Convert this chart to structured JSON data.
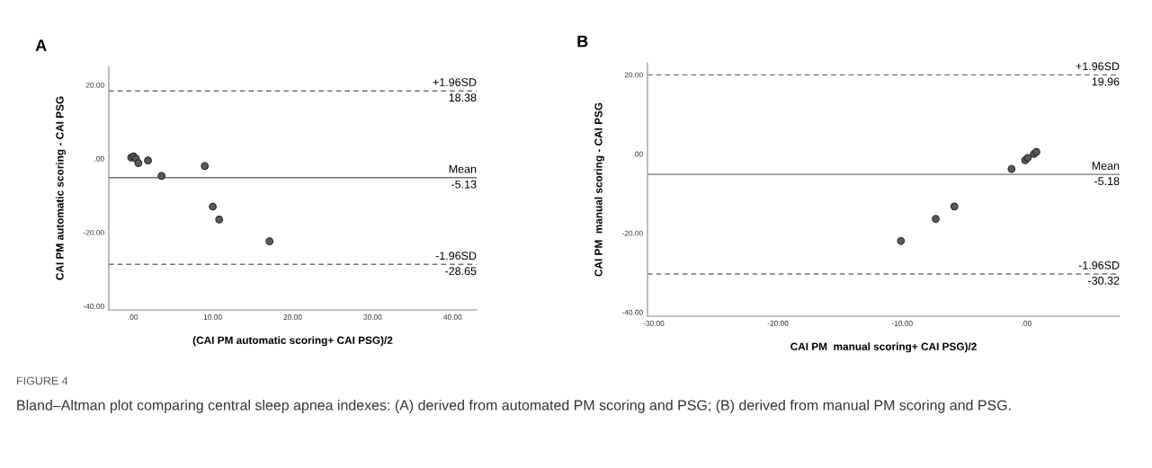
{
  "chart_data": [
    {
      "type": "scatter",
      "title": "A",
      "xlabel": "(CAI PM automatic scoring+ CAI PSG)/2",
      "ylabel": "CAI PM automatic scoring - CAI PSG",
      "x": [
        -0.2,
        0.1,
        0.4,
        0.7,
        1.9,
        3.6,
        9.0,
        10.0,
        10.8,
        17.1
      ],
      "series": [
        {
          "color": "#5a5a5a",
          "values": [
            0.3,
            0.6,
            0,
            -1.2,
            -0.5,
            -4.7,
            -2.0,
            -13.0,
            -16.5,
            -22.4
          ]
        }
      ],
      "marker": "circle",
      "grid": false,
      "legend": false,
      "xlim": [
        -3,
        43
      ],
      "ylim": [
        -41,
        25
      ],
      "xticks": [
        {
          "value": 0,
          "label": ".00"
        },
        {
          "value": 10,
          "label": "10.00"
        },
        {
          "value": 20,
          "label": "20.00"
        },
        {
          "value": 30,
          "label": "30.00"
        },
        {
          "value": 40,
          "label": "40.00"
        }
      ],
      "yticks": [
        {
          "value": -40,
          "label": "-40.00"
        },
        {
          "value": -20,
          "label": "-20.00"
        },
        {
          "value": 0,
          "label": ".00"
        },
        {
          "value": 20,
          "label": "20.00"
        }
      ],
      "ref_lines": [
        {
          "axis": "y",
          "value": 18.38,
          "label": "+1.96SD\n18.38",
          "line_style": "dashed",
          "color": "#707070"
        },
        {
          "axis": "y",
          "value": -5.13,
          "label": "Mean\n-5.13",
          "line_style": "solid",
          "color": "#707070"
        },
        {
          "axis": "y",
          "value": -28.65,
          "label": "-1.96SD\n-28.65",
          "line_style": "dashed",
          "color": "#707070"
        }
      ]
    },
    {
      "type": "scatter",
      "title": "B",
      "xlabel": "CAI PM  manual scoring+ CAI PSG)/2",
      "ylabel": "CAI PM  manual scoring - CAI PSG",
      "x": [
        -10.1,
        -7.3,
        -5.8,
        -1.2,
        -0.1,
        0.1,
        0.6,
        0.8
      ],
      "series": [
        {
          "color": "#5a5a5a",
          "values": [
            -22.0,
            -16.4,
            -13.3,
            -3.8,
            -1.6,
            -1.0,
            0,
            0.5
          ]
        }
      ],
      "marker": "circle",
      "grid": false,
      "legend": false,
      "xlim": [
        -30.5,
        7.5
      ],
      "ylim": [
        -41,
        23
      ],
      "xticks": [
        {
          "value": -30,
          "label": "-30.00"
        },
        {
          "value": -20,
          "label": "-20.00"
        },
        {
          "value": -10,
          "label": "-10.00"
        },
        {
          "value": 0,
          "label": ".00"
        }
      ],
      "yticks": [
        {
          "value": -40,
          "label": "-40.00"
        },
        {
          "value": -20,
          "label": "-20.00"
        },
        {
          "value": 0,
          "label": ".00"
        },
        {
          "value": 20,
          "label": "20.00"
        }
      ],
      "ref_lines": [
        {
          "axis": "y",
          "value": 19.96,
          "label": "+1.96SD\n19.96",
          "line_style": "dashed",
          "color": "#707070"
        },
        {
          "axis": "y",
          "value": -5.18,
          "label": "Mean\n-5.18",
          "line_style": "solid",
          "color": "#707070"
        },
        {
          "axis": "y",
          "value": -30.32,
          "label": "-1.96SD\n-30.32",
          "line_style": "dashed",
          "color": "#707070"
        }
      ],
      "annotations": [
        "FIGURE 4",
        "Bland–Altman plot comparing central sleep apnea indexes: (A) derived from automated PM scoring and PSG; (B) derived from manual PM scoring and PSG."
      ]
    }
  ]
}
